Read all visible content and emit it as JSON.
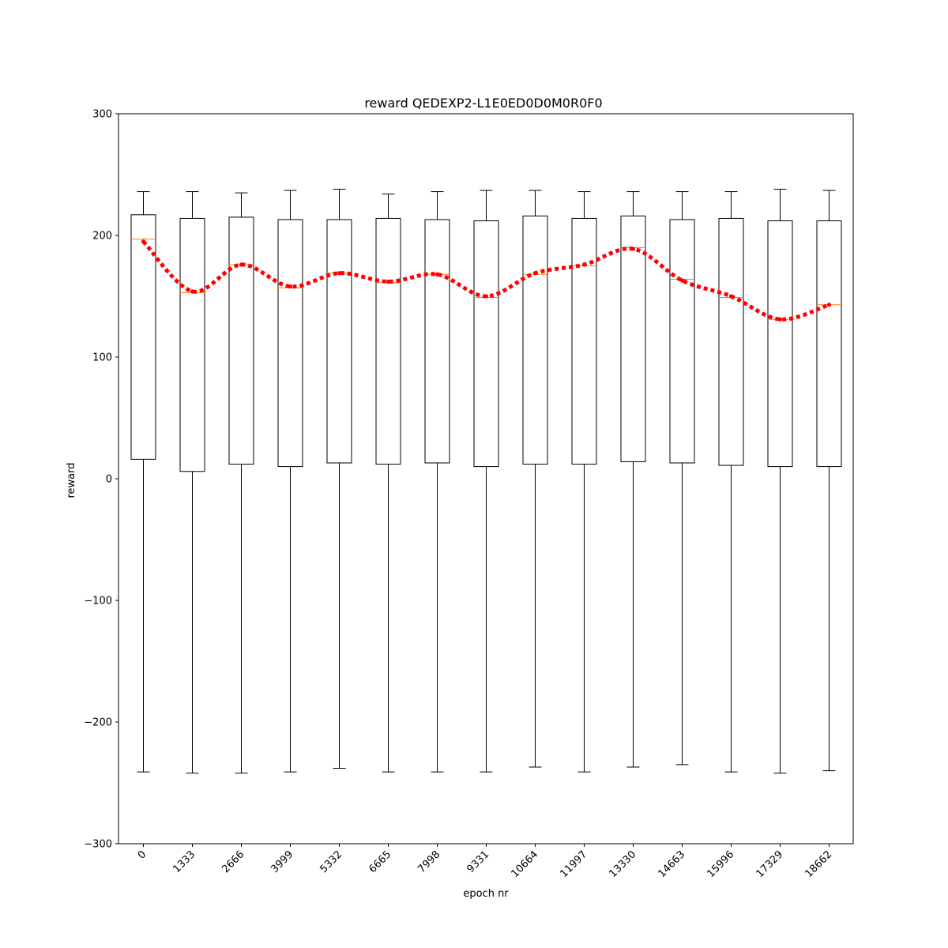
{
  "chart_data": {
    "type": "boxplot",
    "title": "reward QEDEXP2-L1E0ED0D0M0R0F0",
    "xlabel": "epoch nr",
    "ylabel": "reward",
    "ylim": [
      -300,
      300
    ],
    "yticks": [
      -300,
      -200,
      -100,
      0,
      100,
      200,
      300
    ],
    "categories": [
      "0",
      "1333",
      "2666",
      "3999",
      "5332",
      "6665",
      "7998",
      "9331",
      "10664",
      "11997",
      "13330",
      "14663",
      "15996",
      "17329",
      "18662"
    ],
    "boxes": [
      {
        "whisker_low": -241,
        "q1": 16,
        "median": 197,
        "q3": 217,
        "whisker_high": 236
      },
      {
        "whisker_low": -242,
        "q1": 6,
        "median": 153,
        "q3": 214,
        "whisker_high": 236
      },
      {
        "whisker_low": -242,
        "q1": 12,
        "median": 176,
        "q3": 215,
        "whisker_high": 235
      },
      {
        "whisker_low": -241,
        "q1": 10,
        "median": 157,
        "q3": 213,
        "whisker_high": 237
      },
      {
        "whisker_low": -238,
        "q1": 13,
        "median": 169,
        "q3": 213,
        "whisker_high": 238
      },
      {
        "whisker_low": -241,
        "q1": 12,
        "median": 161,
        "q3": 214,
        "whisker_high": 234
      },
      {
        "whisker_low": -241,
        "q1": 13,
        "median": 168,
        "q3": 213,
        "whisker_high": 236
      },
      {
        "whisker_low": -241,
        "q1": 10,
        "median": 149,
        "q3": 212,
        "whisker_high": 237
      },
      {
        "whisker_low": -237,
        "q1": 12,
        "median": 168,
        "q3": 216,
        "whisker_high": 237
      },
      {
        "whisker_low": -241,
        "q1": 12,
        "median": 175,
        "q3": 214,
        "whisker_high": 236
      },
      {
        "whisker_low": -237,
        "q1": 14,
        "median": 190,
        "q3": 216,
        "whisker_high": 236
      },
      {
        "whisker_low": -235,
        "q1": 13,
        "median": 164,
        "q3": 213,
        "whisker_high": 236
      },
      {
        "whisker_low": -241,
        "q1": 11,
        "median": 149,
        "q3": 214,
        "whisker_high": 236
      },
      {
        "whisker_low": -242,
        "q1": 10,
        "median": 131,
        "q3": 212,
        "whisker_high": 238
      },
      {
        "whisker_low": -240,
        "q1": 10,
        "median": 143,
        "q3": 212,
        "whisker_high": 237
      }
    ],
    "trend": {
      "style": "dotted",
      "values": [
        195,
        154,
        176,
        158,
        169,
        162,
        168,
        150,
        169,
        176,
        189,
        163,
        150,
        131,
        143
      ]
    },
    "colors": {
      "box": "#000000",
      "median": "#ff7f0e",
      "trend": "#ff0000"
    },
    "grid": false
  }
}
